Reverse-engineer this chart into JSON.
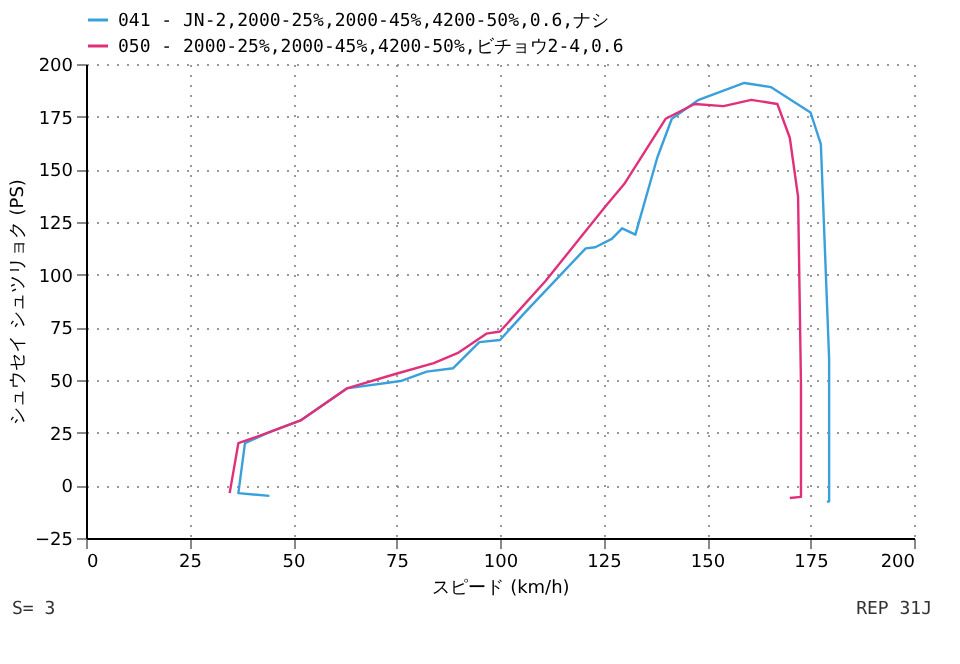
{
  "chart_data": {
    "type": "line",
    "xlabel": "スピード (km/h)",
    "ylabel": "シュウセイ シュツリョク (PS)",
    "xlim": [
      0,
      200
    ],
    "xticks": [
      0,
      25,
      50,
      75,
      100,
      125,
      150,
      175,
      200
    ],
    "ylim": [
      -25,
      200
    ],
    "yticks": [
      -25,
      0,
      25,
      50,
      75,
      100,
      125,
      150,
      175,
      200
    ],
    "grid": true,
    "legend": "top left",
    "line_style": "solid",
    "annotations": [
      "S= 3",
      "REP 31J"
    ],
    "series": [
      {
        "name": "041 - JN-2,2000-25%,2000-45%,4200-50%,0.6,ナシ",
        "color": "#3aa0dc",
        "x": [
          44.3,
          36.8,
          38.4,
          44,
          52,
          63,
          76,
          82.3,
          88.7,
          95,
          100,
          106,
          120.7,
          123,
          127,
          129.5,
          132.7,
          138,
          141.5,
          148,
          159,
          165.5,
          175,
          177.5,
          179.5,
          179.5,
          179
        ],
        "values": [
          -5,
          -3.7,
          20,
          25,
          31,
          46,
          49.5,
          54,
          55.6,
          68,
          69,
          82,
          112.5,
          113,
          117,
          122,
          119,
          155.6,
          174,
          183,
          191,
          189,
          177,
          162,
          60,
          -7.5,
          -8
        ]
      },
      {
        "name": "050 - 2000-25%,2000-45%,4200-50%,ビチョウ2-4,0.6",
        "color": "#e0307a",
        "x": [
          34.7,
          36.8,
          44,
          52,
          63,
          74.3,
          84,
          90,
          96.7,
          100,
          111,
          125.5,
          130,
          140,
          147,
          154,
          160.7,
          167,
          170,
          172,
          172.7,
          172.7,
          170
        ],
        "values": [
          -3.7,
          20,
          25,
          31,
          46,
          52.6,
          58,
          63,
          72,
          73,
          97,
          132.5,
          143,
          174,
          181,
          180,
          183,
          181,
          165,
          137,
          48,
          -5.5,
          -6
        ]
      }
    ]
  }
}
